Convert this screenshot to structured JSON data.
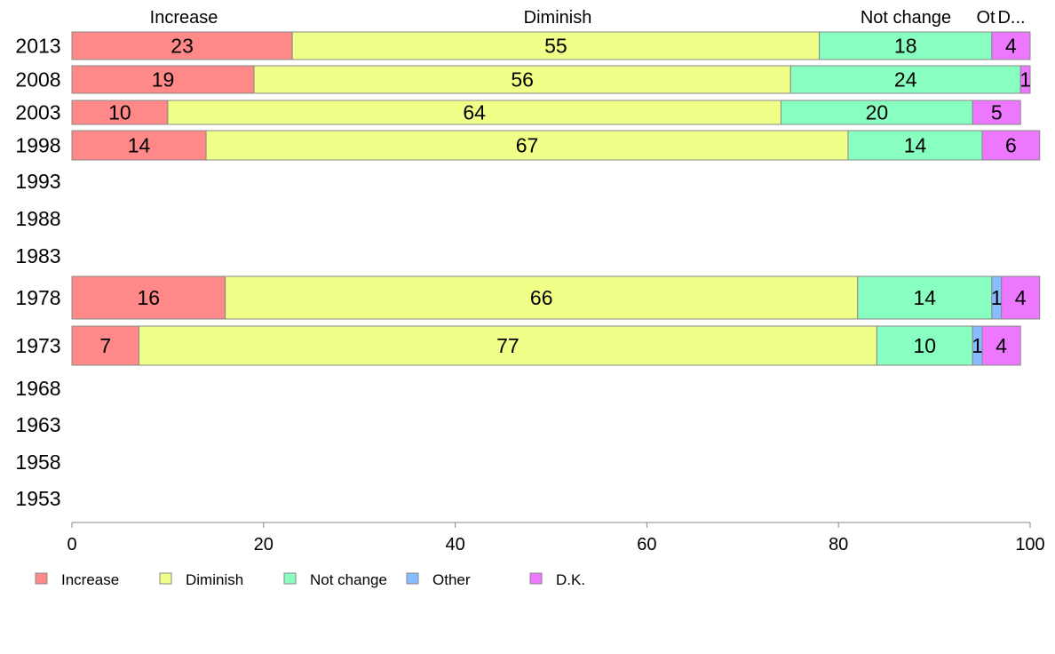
{
  "chart_data": {
    "type": "bar",
    "orientation": "horizontal",
    "stacked": true,
    "categories": [
      "2013",
      "2008",
      "2003",
      "1998",
      "1993",
      "1988",
      "1983",
      "1978",
      "1973",
      "1968",
      "1963",
      "1958",
      "1953"
    ],
    "series": [
      {
        "name": "Increase",
        "color": "#ff8888",
        "values": [
          23,
          19,
          10,
          14,
          null,
          null,
          null,
          16,
          7,
          null,
          null,
          null,
          null
        ]
      },
      {
        "name": "Diminish",
        "color": "#f0ff88",
        "values": [
          55,
          56,
          64,
          67,
          null,
          null,
          null,
          66,
          77,
          null,
          null,
          null,
          null
        ]
      },
      {
        "name": "Not change",
        "color": "#88ffc0",
        "values": [
          18,
          24,
          20,
          14,
          null,
          null,
          null,
          14,
          10,
          null,
          null,
          null,
          null
        ]
      },
      {
        "name": "Other",
        "color": "#88bbff",
        "values": [
          0,
          0,
          0,
          0,
          null,
          null,
          null,
          1,
          1,
          null,
          null,
          null,
          null
        ]
      },
      {
        "name": "D.K.",
        "color": "#ee77ff",
        "values": [
          4,
          1,
          5,
          6,
          null,
          null,
          null,
          4,
          4,
          null,
          null,
          null,
          null
        ]
      }
    ],
    "top_labels": [
      "Increase",
      "Diminish",
      "Not change",
      "Ot",
      "D..."
    ],
    "x_ticks": [
      0,
      20,
      40,
      60,
      80,
      100
    ],
    "xlim": [
      0,
      100
    ],
    "legend_position": "bottom-left",
    "grid": false
  }
}
